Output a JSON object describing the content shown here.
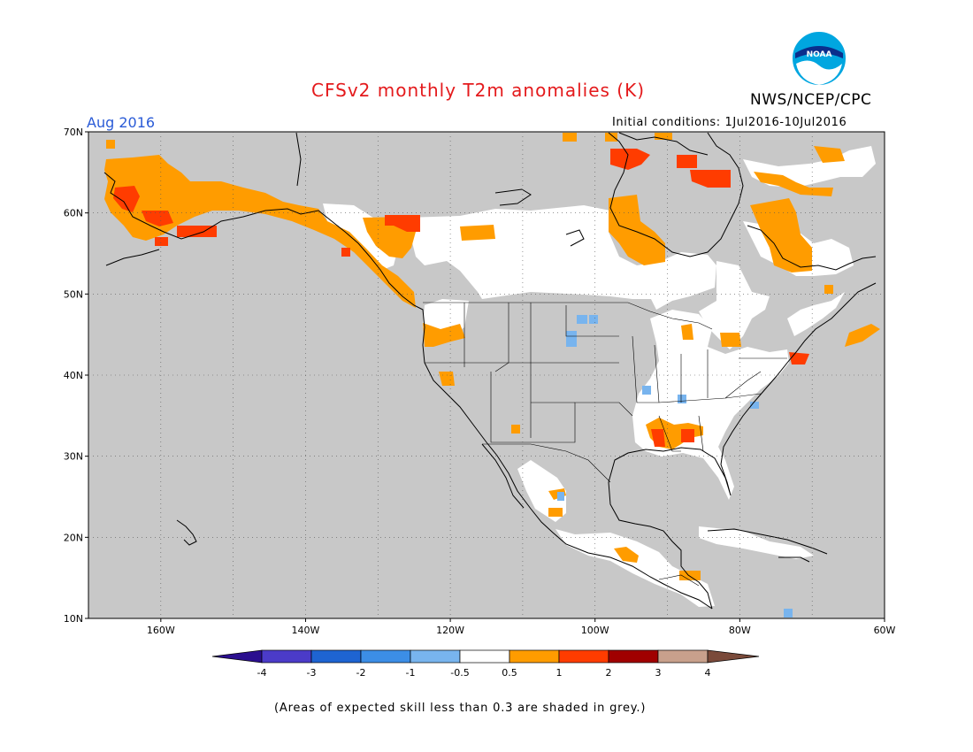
{
  "header": {
    "title": "CFSv2 monthly T2m anomalies (K)",
    "agency": "NWS/NCEP/CPC",
    "valid_month": "Aug 2016",
    "initial_conditions": "Initial conditions: 1Jul2016-10Jul2016"
  },
  "logo": {
    "text": "NOAA"
  },
  "map": {
    "projection": "cylindrical equidistant",
    "lon_range": [
      -170,
      -60
    ],
    "lat_range": [
      10,
      70
    ],
    "grid": "dotted",
    "lat_labels": [
      "70N",
      "60N",
      "50N",
      "40N",
      "30N",
      "20N",
      "10N"
    ],
    "lon_labels": [
      "160W",
      "140W",
      "120W",
      "100W",
      "80W",
      "60W"
    ],
    "skill_mask_color": "#c8c8c8",
    "ocean_color": "#c8c8c8",
    "land_neutral_color": "#ffffff"
  },
  "colorbar": {
    "ticks": [
      "-4",
      "-3",
      "-2",
      "-1",
      "-0.5",
      "0.5",
      "1",
      "2",
      "3",
      "4"
    ],
    "colors": [
      "#2b0f8f",
      "#4b3bc8",
      "#1e64d2",
      "#3c8ee6",
      "#78b4ee",
      "#ffffff",
      "#ff9c00",
      "#ff3c00",
      "#a00000",
      "#c8a08c",
      "#7a4a3a"
    ]
  },
  "anomaly_regions": [
    {
      "region": "Western Alaska",
      "category": "0.5 to 1",
      "color": "#ff9c00"
    },
    {
      "region": "Southwest Alaska coast",
      "category": "1 to 2",
      "color": "#ff3c00"
    },
    {
      "region": "British Columbia coast",
      "category": "0.5 to 1",
      "color": "#ff9c00"
    },
    {
      "region": "Northern Saskatchewan",
      "category": "0.5 to 1",
      "color": "#ff9c00"
    },
    {
      "region": "Hudson Bay west coast",
      "category": "0.5 to 1",
      "color": "#ff9c00"
    },
    {
      "region": "Northern Quebec",
      "category": "0.5 to 1",
      "color": "#ff9c00"
    },
    {
      "region": "Baffin Island",
      "category": "1 to 2",
      "color": "#ff3c00"
    },
    {
      "region": "Northeast US coast",
      "category": "1 to 2",
      "color": "#ff3c00"
    },
    {
      "region": "Gulf Coast (Louisiana/Mississippi)",
      "category": "1 to 2",
      "color": "#ff3c00"
    },
    {
      "region": "South Dakota",
      "category": "-1 to -0.5",
      "color": "#78b4ee"
    }
  ],
  "footnote": "(Areas of expected skill less than 0.3 are shaded in grey.)"
}
